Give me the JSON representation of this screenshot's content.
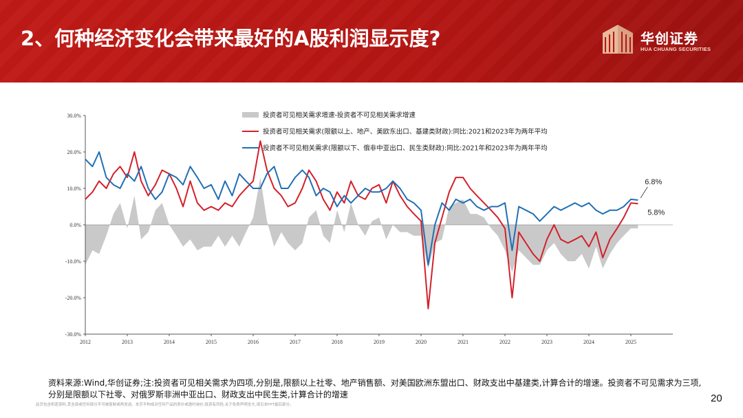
{
  "header": {
    "title": "2、何种经济变化会带来最好的A股利润显示度?",
    "logo_cn": "华创证券",
    "logo_en": "HUA CHUANG SECURITIES"
  },
  "colors": {
    "header_red": "#b51613",
    "visible_series": "#d3202a",
    "invisible_series": "#1f6fb5",
    "spread_area": "#c9c9c9",
    "logo_accent": "#e8b99c"
  },
  "chart_data": {
    "type": "line",
    "title": "",
    "xlabel": "",
    "ylabel": "",
    "ylim": [
      -0.3,
      0.3
    ],
    "yticks": [
      -0.3,
      -0.2,
      -0.1,
      0.0,
      0.1,
      0.2,
      0.3
    ],
    "ytick_labels": [
      "-30.0%",
      "-20.0%",
      "-10.0%",
      "0.0%",
      "10.0%",
      "20.0%",
      "30.0%"
    ],
    "xlim": [
      2012.0,
      2026.0
    ],
    "xticks": [
      2012,
      2013,
      2014,
      2015,
      2016,
      2017,
      2018,
      2019,
      2020,
      2021,
      2022,
      2023,
      2024,
      2025
    ],
    "xtick_labels": [
      "2012",
      "2013",
      "2014",
      "2015",
      "2016",
      "2017",
      "2018",
      "2019",
      "2020",
      "2021",
      "2022",
      "2023",
      "2024",
      "2025"
    ],
    "grid": false,
    "legend_position": "top-center",
    "legend": [
      {
        "label": "投资者可见相关需求增速-投资者不可见相关需求增速",
        "style": "area",
        "color": "#c9c9c9"
      },
      {
        "label": "投资者可见相关需求(限额以上、地产、美欧东出口、基建类财政):同比:2021和2023年为两年平均",
        "style": "line",
        "color": "#d3202a"
      },
      {
        "label": "投资者不可见相关需求(限额以下、俄非中亚出口、民生类财政):同比:2021年和2023年为两年平均",
        "style": "line",
        "color": "#1f6fb5"
      }
    ],
    "annotations": [
      {
        "text": "6.8%",
        "x": 2025.2,
        "y": 0.068
      },
      {
        "text": "5.8%",
        "x": 2025.2,
        "y": 0.058
      }
    ],
    "x": [
      2012.0,
      2012.17,
      2012.33,
      2012.5,
      2012.67,
      2012.83,
      2013.0,
      2013.17,
      2013.33,
      2013.5,
      2013.67,
      2013.83,
      2014.0,
      2014.17,
      2014.33,
      2014.5,
      2014.67,
      2014.83,
      2015.0,
      2015.17,
      2015.33,
      2015.5,
      2015.67,
      2015.83,
      2016.0,
      2016.17,
      2016.33,
      2016.5,
      2016.67,
      2016.83,
      2017.0,
      2017.17,
      2017.33,
      2017.5,
      2017.67,
      2017.83,
      2018.0,
      2018.17,
      2018.33,
      2018.5,
      2018.67,
      2018.83,
      2019.0,
      2019.17,
      2019.33,
      2019.5,
      2019.67,
      2019.83,
      2020.0,
      2020.17,
      2020.33,
      2020.5,
      2020.67,
      2020.83,
      2021.0,
      2021.17,
      2021.33,
      2021.5,
      2021.67,
      2021.83,
      2022.0,
      2022.17,
      2022.33,
      2022.5,
      2022.67,
      2022.83,
      2023.0,
      2023.17,
      2023.33,
      2023.5,
      2023.67,
      2023.83,
      2024.0,
      2024.17,
      2024.33,
      2024.5,
      2024.67,
      2024.83,
      2025.0,
      2025.17
    ],
    "series": [
      {
        "name": "投资者可见相关需求(限额以上、地产、美欧东出口、基建类财政):同比:2021和2023年为两年平均",
        "color": "#d3202a",
        "values": [
          0.07,
          0.09,
          0.12,
          0.1,
          0.14,
          0.16,
          0.13,
          0.2,
          0.12,
          0.08,
          0.11,
          0.15,
          0.14,
          0.1,
          0.05,
          0.12,
          0.06,
          0.04,
          0.05,
          0.04,
          0.06,
          0.05,
          0.08,
          0.1,
          0.12,
          0.23,
          0.15,
          0.1,
          0.08,
          0.05,
          0.06,
          0.1,
          0.15,
          0.12,
          0.07,
          0.04,
          0.09,
          0.06,
          0.12,
          0.08,
          0.07,
          0.1,
          0.11,
          0.06,
          0.12,
          0.08,
          0.05,
          0.03,
          0.01,
          -0.23,
          -0.05,
          0.02,
          0.09,
          0.13,
          0.13,
          0.1,
          0.08,
          0.06,
          0.04,
          0.02,
          -0.01,
          -0.2,
          -0.02,
          -0.05,
          -0.08,
          -0.1,
          -0.04,
          0.0,
          -0.04,
          -0.05,
          -0.04,
          -0.03,
          -0.06,
          -0.02,
          -0.09,
          -0.04,
          -0.01,
          0.02,
          0.06,
          0.058
        ]
      },
      {
        "name": "投资者不可见相关需求(限额以下、俄非中亚出口、民生类财政):同比:2021年和2023年为两年平均",
        "color": "#1f6fb5",
        "values": [
          0.18,
          0.16,
          0.2,
          0.13,
          0.11,
          0.1,
          0.14,
          0.12,
          0.16,
          0.1,
          0.07,
          0.09,
          0.14,
          0.13,
          0.11,
          0.16,
          0.13,
          0.1,
          0.11,
          0.07,
          0.12,
          0.08,
          0.14,
          0.12,
          0.1,
          0.1,
          0.14,
          0.16,
          0.1,
          0.1,
          0.13,
          0.15,
          0.13,
          0.08,
          0.1,
          0.09,
          0.05,
          0.08,
          0.06,
          0.08,
          0.1,
          0.09,
          0.09,
          0.1,
          0.12,
          0.1,
          0.07,
          0.06,
          0.04,
          -0.11,
          0.0,
          0.06,
          0.04,
          0.07,
          0.06,
          0.07,
          0.05,
          0.04,
          0.05,
          0.05,
          0.06,
          -0.07,
          0.05,
          0.04,
          0.03,
          0.01,
          0.03,
          0.05,
          0.04,
          0.05,
          0.06,
          0.05,
          0.06,
          0.04,
          0.03,
          0.04,
          0.04,
          0.05,
          0.07,
          0.068
        ]
      },
      {
        "name": "投资者可见相关需求增速-投资者不可见相关需求增速",
        "color": "#c9c9c9",
        "values": [
          -0.11,
          -0.07,
          -0.08,
          -0.03,
          0.03,
          0.06,
          -0.01,
          0.08,
          -0.04,
          -0.02,
          0.04,
          0.06,
          0.0,
          -0.03,
          -0.06,
          -0.04,
          -0.07,
          -0.06,
          -0.06,
          -0.03,
          -0.06,
          -0.03,
          -0.06,
          -0.02,
          0.02,
          0.13,
          0.01,
          -0.06,
          -0.02,
          -0.05,
          -0.07,
          -0.05,
          0.02,
          0.04,
          -0.03,
          -0.05,
          0.04,
          -0.02,
          0.06,
          0.0,
          -0.03,
          0.01,
          0.02,
          -0.04,
          0.0,
          -0.02,
          -0.02,
          -0.03,
          -0.03,
          -0.12,
          -0.05,
          -0.04,
          0.05,
          0.06,
          0.07,
          0.03,
          0.03,
          0.02,
          -0.01,
          -0.03,
          -0.07,
          -0.13,
          -0.07,
          -0.09,
          -0.11,
          -0.11,
          -0.07,
          -0.05,
          -0.08,
          -0.1,
          -0.1,
          -0.08,
          -0.12,
          -0.06,
          -0.12,
          -0.08,
          -0.05,
          -0.03,
          -0.01,
          -0.01
        ]
      }
    ]
  },
  "footer": {
    "source_note": "资料来源:Wind,华创证券;注:投资者可见相关需求为四项,分别是,限额以上社零、地产销售额、对美国欧洲东盟出口、财政支出中基建类,计算合计的增速。投资者不可见需求为三项,分别是限额以下社零、对俄罗斯非洲中亚出口、财政支出中民生类,计算合计的增速",
    "disclaimer": "此页包含机密资料,其全部或任何部分不可被复制或再发送。本页不构成对任何产品的卖价或邀约询价,投资有风险,关于免责声明全文,请见本PPT最后部分。",
    "page_number": "20"
  }
}
